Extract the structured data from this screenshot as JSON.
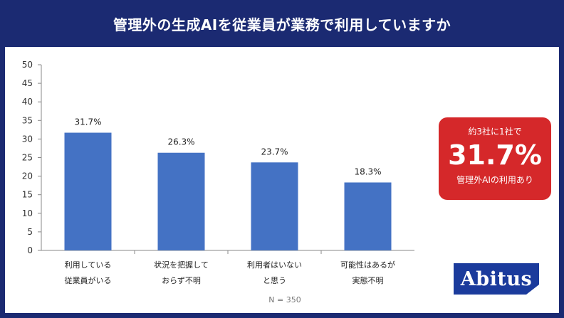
{
  "header": {
    "title": "管理外の生成AIを従業員が業務で利用していますか"
  },
  "chart_data": {
    "type": "bar",
    "categories": [
      [
        "利用している",
        "従業員がいる"
      ],
      [
        "状況を把握して",
        "おらず不明"
      ],
      [
        "利用者はいない",
        "と思う"
      ],
      [
        "可能性はあるが",
        "実態不明"
      ]
    ],
    "values": [
      31.7,
      26.3,
      23.7,
      18.3
    ],
    "data_labels": [
      "31.7%",
      "26.3%",
      "23.7%",
      "18.3%"
    ],
    "yticks": [
      "0",
      "5",
      "10",
      "15",
      "20",
      "25",
      "30",
      "35",
      "40",
      "45",
      "50"
    ],
    "ylim": [
      0,
      50
    ],
    "bar_color": "#4472c4",
    "grid": false,
    "title": "",
    "xlabel": "",
    "ylabel": ""
  },
  "note": {
    "text": "N = 350"
  },
  "callout": {
    "pre": "約3社に1社で",
    "value": "31.7%",
    "post": "管理外AIの利用あり",
    "color": "#d5282a"
  },
  "logo": {
    "text": "Abitus",
    "color": "#1b3b9c"
  }
}
